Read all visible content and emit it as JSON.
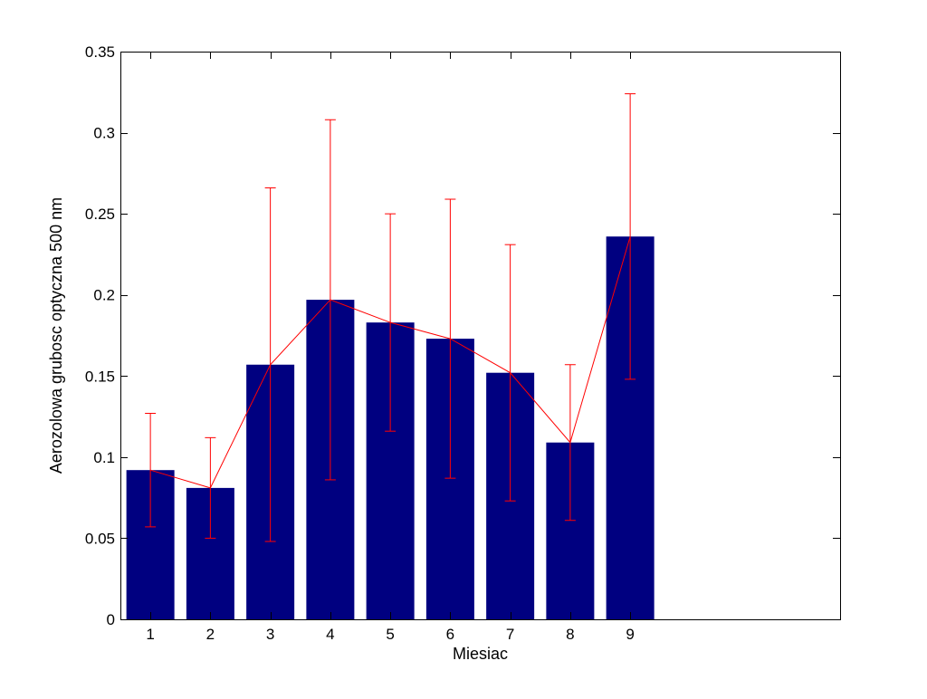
{
  "chart_data": {
    "type": "bar",
    "categories": [
      "1",
      "2",
      "3",
      "4",
      "5",
      "6",
      "7",
      "8",
      "9"
    ],
    "values": [
      0.092,
      0.081,
      0.157,
      0.197,
      0.183,
      0.173,
      0.152,
      0.109,
      0.236
    ],
    "error_lower": [
      0.057,
      0.05,
      0.048,
      0.086,
      0.116,
      0.087,
      0.073,
      0.061,
      0.148
    ],
    "error_upper": [
      0.127,
      0.112,
      0.266,
      0.308,
      0.25,
      0.259,
      0.231,
      0.157,
      0.324
    ],
    "line_overlay": true,
    "title": "",
    "xlabel": "Miesiac",
    "ylabel": "Aerozolowa grubosc optyczna 500 nm",
    "xlim": [
      0.5,
      12.5
    ],
    "ylim": [
      0,
      0.35
    ],
    "yticks": [
      0,
      0.05,
      0.1,
      0.15,
      0.2,
      0.25,
      0.3,
      0.35
    ],
    "ytick_labels": [
      "0",
      "0.05",
      "0.1",
      "0.15",
      "0.2",
      "0.25",
      "0.3",
      "0.35"
    ],
    "xticks": [
      1,
      2,
      3,
      4,
      5,
      6,
      7,
      8,
      9
    ],
    "xtick_labels": [
      "1",
      "2",
      "3",
      "4",
      "5",
      "6",
      "7",
      "8",
      "9"
    ],
    "grid": false,
    "colors": {
      "bar": "#000080",
      "line": "#ff0000",
      "error_bar": "#ff0000",
      "axes": "#000000",
      "background": "#ffffff"
    }
  }
}
